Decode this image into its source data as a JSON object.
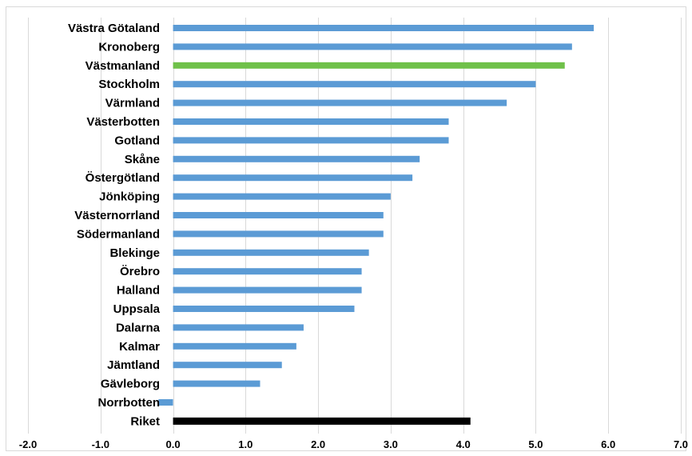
{
  "chart_data": {
    "type": "bar",
    "orientation": "horizontal",
    "title": "",
    "xlabel": "",
    "ylabel": "",
    "xlim": [
      -2.0,
      7.0
    ],
    "x_ticks": [
      "-2.0",
      "-1.0",
      "0.0",
      "1.0",
      "2.0",
      "3.0",
      "4.0",
      "5.0",
      "6.0",
      "7.0"
    ],
    "grid": "vertical",
    "legend": "none",
    "categories": [
      "Västra Götaland",
      "Kronoberg",
      "Västmanland",
      "Stockholm",
      "Värmland",
      "Västerbotten",
      "Gotland",
      "Skåne",
      "Östergötland",
      "Jönköping",
      "Västernorrland",
      "Södermanland",
      "Blekinge",
      "Örebro",
      "Halland",
      "Uppsala",
      "Dalarna",
      "Kalmar",
      "Jämtland",
      "Gävleborg",
      "Norrbotten",
      "Riket"
    ],
    "values": [
      5.8,
      5.5,
      5.4,
      5.0,
      4.6,
      3.8,
      3.8,
      3.4,
      3.3,
      3.0,
      2.9,
      2.9,
      2.7,
      2.6,
      2.6,
      2.5,
      1.8,
      1.7,
      1.5,
      1.2,
      -0.2,
      4.1
    ],
    "colors": [
      "#5b9bd5",
      "#5b9bd5",
      "#70c14a",
      "#5b9bd5",
      "#5b9bd5",
      "#5b9bd5",
      "#5b9bd5",
      "#5b9bd5",
      "#5b9bd5",
      "#5b9bd5",
      "#5b9bd5",
      "#5b9bd5",
      "#5b9bd5",
      "#5b9bd5",
      "#5b9bd5",
      "#5b9bd5",
      "#5b9bd5",
      "#5b9bd5",
      "#5b9bd5",
      "#5b9bd5",
      "#5b9bd5",
      "#000000"
    ],
    "grid_color": "#d9d9d9"
  }
}
